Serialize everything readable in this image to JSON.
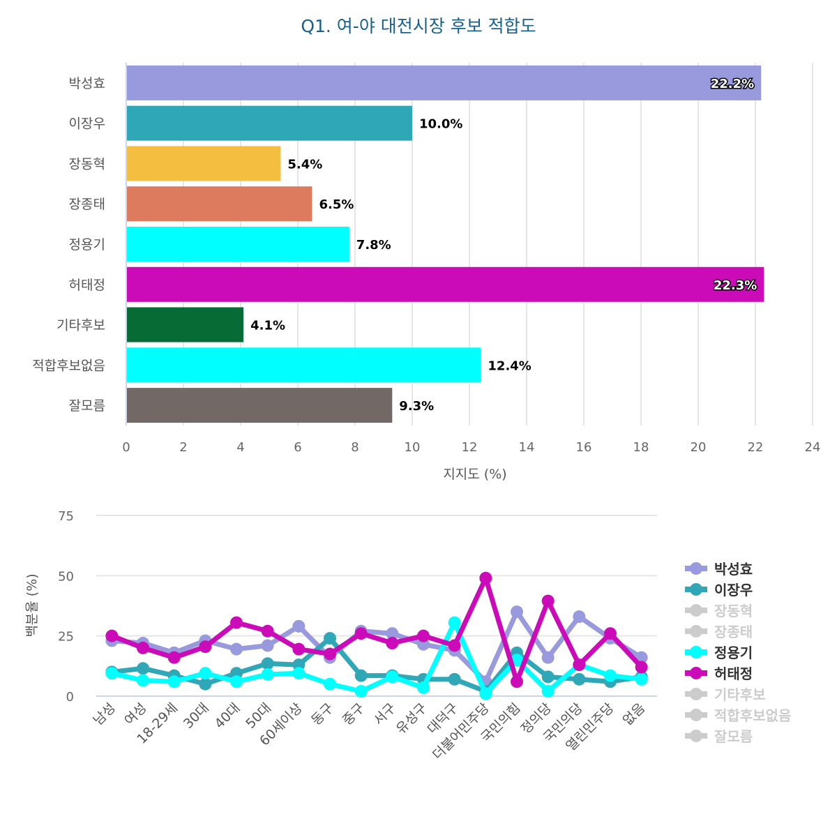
{
  "chart_data": [
    {
      "type": "bar",
      "orientation": "horizontal",
      "title": "Q1. 여-야 대전시장 후보 적합도",
      "xlabel": "지지도 (%)",
      "ylabel": "",
      "xlim": [
        0,
        24
      ],
      "x_ticks": [
        "0",
        "2",
        "4",
        "6",
        "8",
        "10",
        "12",
        "14",
        "16",
        "18",
        "20",
        "22",
        "24"
      ],
      "grid": true,
      "categories": [
        "박성효",
        "이장우",
        "장동혁",
        "장종태",
        "정용기",
        "허태정",
        "기타후보",
        "적합후보없음",
        "잘모름"
      ],
      "values": [
        22.2,
        10.0,
        5.4,
        6.5,
        7.8,
        22.3,
        4.1,
        12.4,
        9.3
      ],
      "data_labels": [
        "22.2%",
        "10.0%",
        "5.4%",
        "6.5%",
        "7.8%",
        "22.3%",
        "4.1%",
        "12.4%",
        "9.3%"
      ],
      "colors": [
        "#9999dd",
        "#2fa7b6",
        "#f4be41",
        "#dd7b5e",
        "#00ffff",
        "#cc0bb8",
        "#066b35",
        "#00ffff",
        "#726967"
      ]
    },
    {
      "type": "line",
      "title": "",
      "xlabel": "",
      "ylabel": "백분율 (%)",
      "ylim": [
        0,
        75
      ],
      "y_ticks": [
        "0",
        "25",
        "50",
        "75"
      ],
      "grid": true,
      "legend_position": "right",
      "categories": [
        "남성",
        "여성",
        "18-29세",
        "30대",
        "40대",
        "50대",
        "60세이상",
        "동구",
        "중구",
        "서구",
        "유성구",
        "대덕구",
        "더불어민주당",
        "국민의힘",
        "정의당",
        "국민의당",
        "열린민주당",
        "없음"
      ],
      "series": [
        {
          "name": "박성효",
          "color": "#9999dd",
          "visible": true,
          "values": [
            23,
            22,
            18,
            23,
            19.5,
            21,
            29,
            16,
            27,
            26,
            21.5,
            19,
            6,
            35,
            16,
            33,
            24,
            16
          ]
        },
        {
          "name": "이장우",
          "color": "#2fa7b6",
          "visible": true,
          "values": [
            10,
            11.5,
            8.5,
            5,
            9.5,
            13.5,
            13,
            24,
            8.5,
            8.5,
            7,
            7,
            2,
            18,
            8,
            7,
            6,
            8
          ]
        },
        {
          "name": "장동혁",
          "color": "#cccccc",
          "visible": false,
          "values": []
        },
        {
          "name": "장종태",
          "color": "#cccccc",
          "visible": false,
          "values": []
        },
        {
          "name": "정용기",
          "color": "#00ffff",
          "visible": true,
          "values": [
            9.5,
            6.5,
            6,
            9.5,
            6,
            9,
            9.5,
            5,
            2,
            8,
            3.5,
            30.5,
            1,
            15,
            2,
            13,
            8.5,
            7
          ]
        },
        {
          "name": "허태정",
          "color": "#cc0bb8",
          "visible": true,
          "values": [
            25,
            20,
            16,
            20.5,
            30.5,
            27,
            19.5,
            17.5,
            26,
            22,
            25,
            21,
            49,
            6,
            39.5,
            13,
            26,
            12
          ]
        },
        {
          "name": "기타후보",
          "color": "#cccccc",
          "visible": false,
          "values": []
        },
        {
          "name": "적합후보없음",
          "color": "#cccccc",
          "visible": false,
          "values": []
        },
        {
          "name": "잘모름",
          "color": "#cccccc",
          "visible": false,
          "values": []
        }
      ]
    }
  ]
}
